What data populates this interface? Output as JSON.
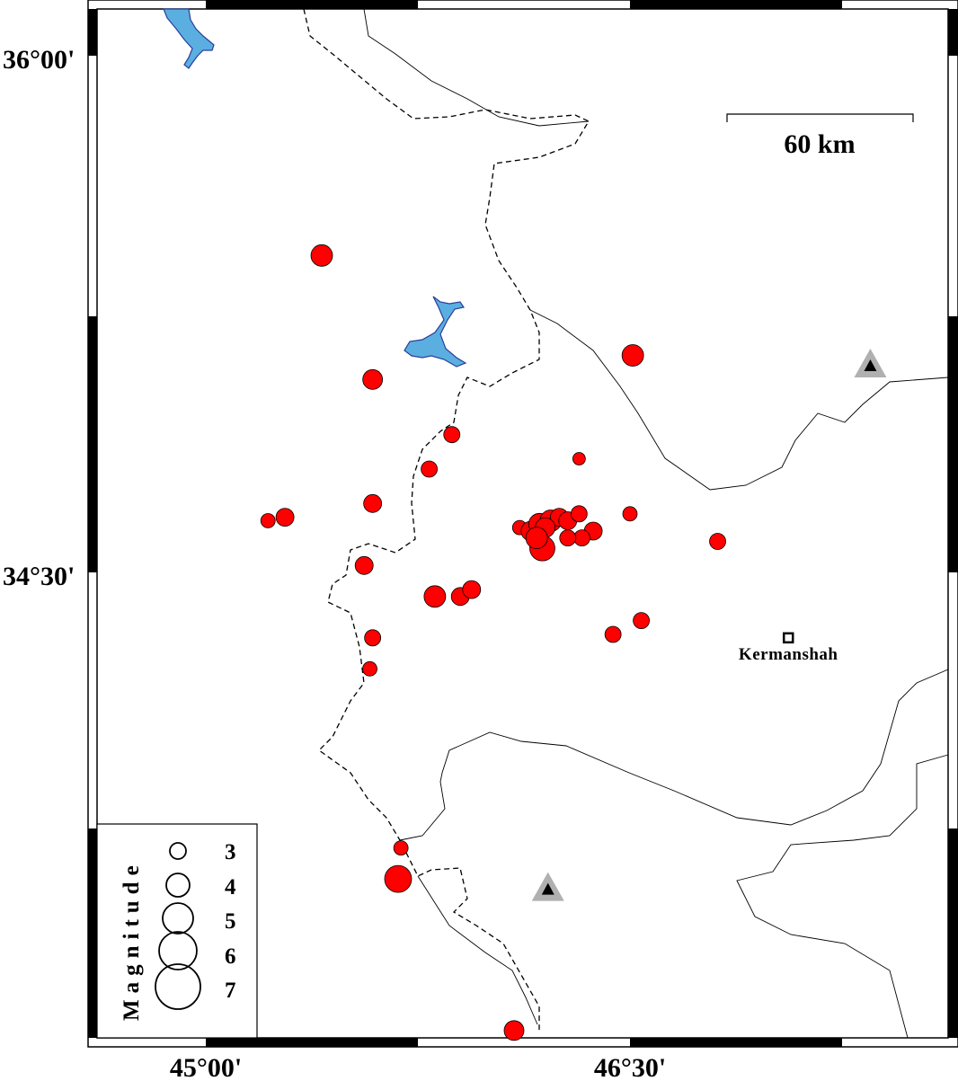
{
  "map": {
    "extent": {
      "lon": [
        44.615,
        47.625
      ],
      "lat": [
        33.135,
        36.135
      ]
    },
    "lon_ticks": [
      {
        "value": 45.0,
        "label": "45°00'"
      },
      {
        "value": 46.5,
        "label": "46°30'"
      }
    ],
    "lat_ticks": [
      {
        "value": 36.0,
        "label": "36°00'"
      },
      {
        "value": 34.5,
        "label": "34°30'"
      }
    ],
    "scale_bar": {
      "label": "60 km",
      "km": 60
    },
    "colors": {
      "event": "#ff0000",
      "water": "#5aafe0",
      "water_edge": "#2a3e9a",
      "station": "#b0b0b0"
    },
    "cities": [
      {
        "name": "Kermanshah",
        "lon": 47.06,
        "lat": 34.31
      }
    ],
    "stations": [
      {
        "lon": 47.35,
        "lat": 35.1
      },
      {
        "lon": 46.21,
        "lat": 33.58
      }
    ],
    "events": [
      {
        "lon": 45.41,
        "lat": 35.42,
        "mag": 3.5
      },
      {
        "lon": 46.51,
        "lat": 35.13,
        "mag": 3.5
      },
      {
        "lon": 45.59,
        "lat": 35.06,
        "mag": 3.25
      },
      {
        "lon": 45.87,
        "lat": 34.9,
        "mag": 2.75
      },
      {
        "lon": 45.79,
        "lat": 34.8,
        "mag": 2.75
      },
      {
        "lon": 46.32,
        "lat": 34.83,
        "mag": 2.25
      },
      {
        "lon": 45.59,
        "lat": 34.7,
        "mag": 3.0
      },
      {
        "lon": 45.28,
        "lat": 34.66,
        "mag": 3.0
      },
      {
        "lon": 45.22,
        "lat": 34.65,
        "mag": 2.5
      },
      {
        "lon": 46.5,
        "lat": 34.67,
        "mag": 2.5
      },
      {
        "lon": 46.81,
        "lat": 34.59,
        "mag": 2.75
      },
      {
        "lon": 45.56,
        "lat": 34.52,
        "mag": 3.0
      },
      {
        "lon": 45.81,
        "lat": 34.43,
        "mag": 3.5
      },
      {
        "lon": 45.9,
        "lat": 34.43,
        "mag": 3.0
      },
      {
        "lon": 45.94,
        "lat": 34.45,
        "mag": 3.0
      },
      {
        "lon": 45.59,
        "lat": 34.31,
        "mag": 2.75
      },
      {
        "lon": 45.58,
        "lat": 34.22,
        "mag": 2.5
      },
      {
        "lon": 46.44,
        "lat": 34.32,
        "mag": 2.75
      },
      {
        "lon": 46.54,
        "lat": 34.36,
        "mag": 2.75
      },
      {
        "lon": 46.11,
        "lat": 34.63,
        "mag": 2.5
      },
      {
        "lon": 46.15,
        "lat": 34.62,
        "mag": 3.25
      },
      {
        "lon": 46.19,
        "lat": 34.57,
        "mag": 4.0
      },
      {
        "lon": 46.18,
        "lat": 34.64,
        "mag": 3.5
      },
      {
        "lon": 46.22,
        "lat": 34.65,
        "mag": 3.5
      },
      {
        "lon": 46.25,
        "lat": 34.66,
        "mag": 3.0
      },
      {
        "lon": 46.28,
        "lat": 34.65,
        "mag": 3.0
      },
      {
        "lon": 46.32,
        "lat": 34.67,
        "mag": 2.75
      },
      {
        "lon": 46.37,
        "lat": 34.62,
        "mag": 3.0
      },
      {
        "lon": 46.33,
        "lat": 34.6,
        "mag": 2.75
      },
      {
        "lon": 46.28,
        "lat": 34.6,
        "mag": 2.75
      },
      {
        "lon": 46.2,
        "lat": 34.63,
        "mag": 3.25
      },
      {
        "lon": 46.17,
        "lat": 34.6,
        "mag": 3.5
      },
      {
        "lon": 45.69,
        "lat": 33.7,
        "mag": 2.5
      },
      {
        "lon": 45.68,
        "lat": 33.61,
        "mag": 4.25
      },
      {
        "lon": 46.09,
        "lat": 33.17,
        "mag": 3.25
      }
    ],
    "legend": {
      "title": "Magnitude",
      "magnitudes": [
        3,
        4,
        5,
        6,
        7
      ],
      "labels": [
        "3",
        "4",
        "5",
        "6",
        "7"
      ]
    }
  }
}
